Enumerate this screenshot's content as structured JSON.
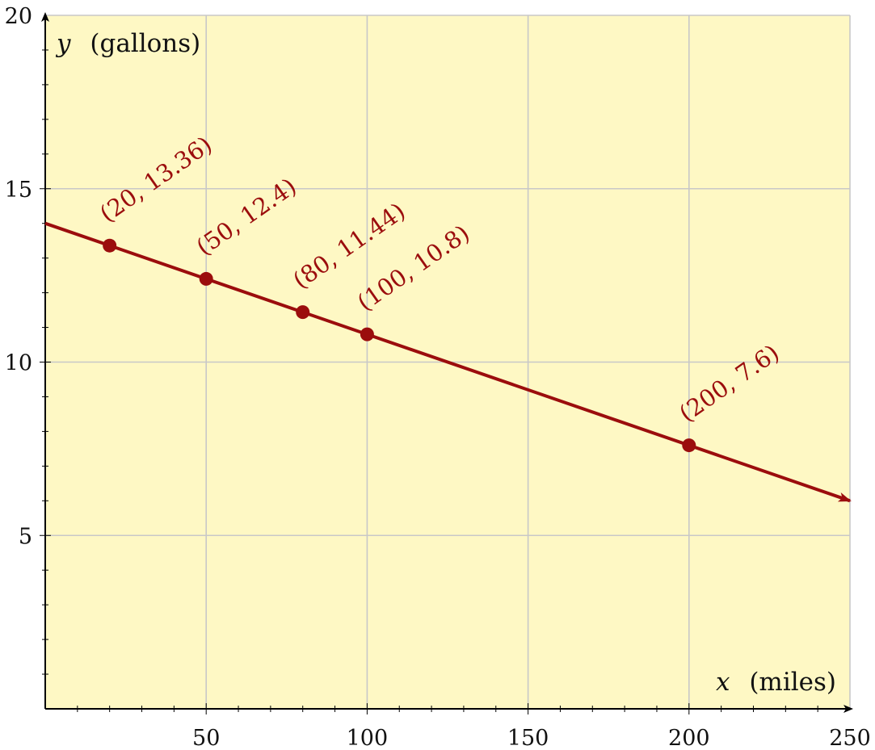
{
  "chart_data": {
    "type": "line",
    "title": "",
    "xlabel_var": "x",
    "xlabel_unit": "(miles)",
    "ylabel_var": "y",
    "ylabel_unit": "(gallons)",
    "xlim": [
      0,
      250
    ],
    "ylim": [
      0,
      20
    ],
    "x_ticks": [
      50,
      100,
      150,
      200,
      250
    ],
    "y_ticks": [
      5,
      10,
      15,
      20
    ],
    "grid": true,
    "background_color": "#fef8c4",
    "grid_color": "#c8c8c8",
    "line_color": "#9b0d0d",
    "line": {
      "slope": -0.032,
      "intercept": 14,
      "x_start": 0,
      "x_end": 250
    },
    "points": [
      {
        "x": 20,
        "y": 13.36,
        "label": "(20, 13.36)"
      },
      {
        "x": 50,
        "y": 12.4,
        "label": "(50, 12.4)"
      },
      {
        "x": 80,
        "y": 11.44,
        "label": "(80, 11.44)"
      },
      {
        "x": 100,
        "y": 10.8,
        "label": "(100, 10.8)"
      },
      {
        "x": 200,
        "y": 7.6,
        "label": "(200, 7.6)"
      }
    ]
  }
}
